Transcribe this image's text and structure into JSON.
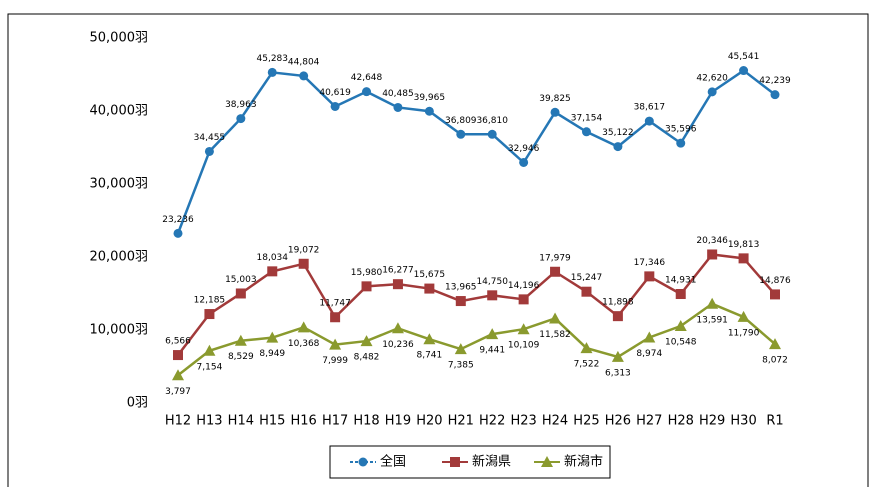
{
  "chart_data": {
    "type": "line",
    "categories": [
      "H12",
      "H13",
      "H14",
      "H15",
      "H16",
      "H17",
      "H18",
      "H19",
      "H20",
      "H21",
      "H22",
      "H23",
      "H24",
      "H25",
      "H26",
      "H27",
      "H28",
      "H29",
      "H30",
      "R1"
    ],
    "series": [
      {
        "name": "全国",
        "color": "#2577b5",
        "marker": "circle",
        "values": [
          23236,
          34455,
          38963,
          45283,
          44804,
          40619,
          42648,
          40485,
          39965,
          36809,
          36810,
          32946,
          39825,
          37154,
          35122,
          38617,
          35596,
          42620,
          45541,
          42239
        ],
        "value_labels": [
          "23,236",
          "34,455",
          "38,963",
          "45,283",
          "44,804",
          "40,619",
          "42,648",
          "40,485",
          "39,965",
          "36,809",
          "36,810",
          "32,946",
          "39,825",
          "37,154",
          "35,122",
          "38,617",
          "35,596",
          "42,620",
          "45,541",
          "42,239"
        ]
      },
      {
        "name": "新潟県",
        "color": "#a23a3a",
        "marker": "square",
        "values": [
          6566,
          12185,
          15003,
          18034,
          19072,
          11747,
          15980,
          16277,
          15675,
          13965,
          14750,
          14196,
          17979,
          15247,
          11898,
          17346,
          14931,
          20346,
          19813,
          14876
        ],
        "value_labels": [
          "6,566",
          "12,185",
          "15,003",
          "18,034",
          "19,072",
          "11,747",
          "15,980",
          "16,277",
          "15,675",
          "13,965",
          "14,750",
          "14,196",
          "17,979",
          "15,247",
          "11,898",
          "17,346",
          "14,931",
          "20,346",
          "19,813",
          "14,876"
        ]
      },
      {
        "name": "新潟市",
        "color": "#8a9a2e",
        "marker": "triangle",
        "values": [
          3797,
          7154,
          8529,
          8949,
          10368,
          7999,
          8482,
          10236,
          8741,
          7385,
          9441,
          10109,
          11582,
          7522,
          6313,
          8974,
          10548,
          13591,
          11790,
          8072
        ],
        "value_labels": [
          "3,797",
          "7,154",
          "8,529",
          "8,949",
          "10,368",
          "7,999",
          "8,482",
          "10,236",
          "8,741",
          "7,385",
          "9,441",
          "10,109",
          "11,582",
          "7,522",
          "6,313",
          "8,974",
          "10,548",
          "13,591",
          "11,790",
          "8,072"
        ]
      }
    ],
    "ylim": [
      0,
      50000
    ],
    "yticks": [
      {
        "value": 0,
        "label": "0羽"
      },
      {
        "value": 10000,
        "label": "10,000羽"
      },
      {
        "value": 20000,
        "label": "20,000羽"
      },
      {
        "value": 30000,
        "label": "30,000羽"
      },
      {
        "value": 40000,
        "label": "40,000羽"
      },
      {
        "value": 50000,
        "label": "50,000羽"
      }
    ],
    "legend": "bottom"
  }
}
